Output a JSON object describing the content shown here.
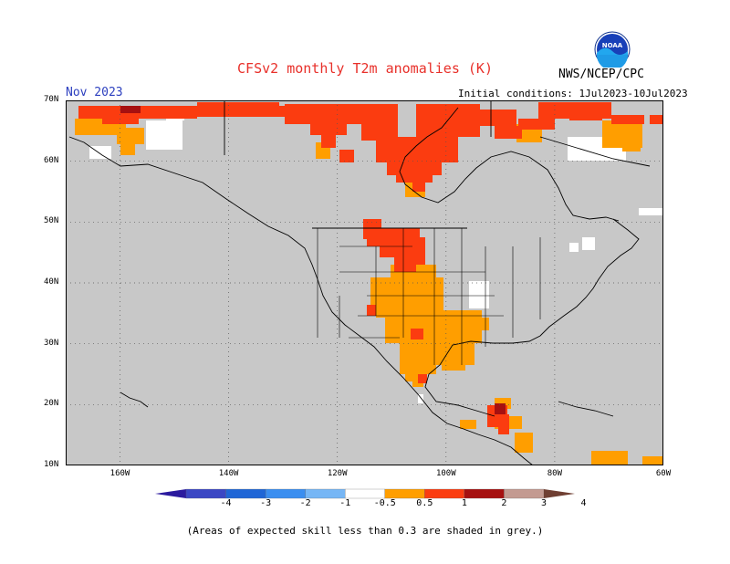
{
  "header": {
    "title": "CFSv2 monthly T2m anomalies (K)",
    "agency": "NWS/NCEP/CPC",
    "logo_text": "NOAA",
    "month": "Nov 2023",
    "initial_conditions": "Initial conditions: 1Jul2023-10Jul2023"
  },
  "map": {
    "lat_labels": [
      "70N",
      "60N",
      "50N",
      "40N",
      "30N",
      "20N",
      "10N"
    ],
    "lon_labels": [
      "160W",
      "140W",
      "120W",
      "100W",
      "80W",
      "60W"
    ],
    "lat_range": [
      10,
      70
    ],
    "lon_range": [
      -170,
      -60
    ],
    "grid": "dotted",
    "mask_color": "#c8c8c8",
    "land_color": "#ffffff",
    "colors": {
      "anom_0.5_1": "#ff9e00",
      "anom_1_2": "#fb3c10",
      "anom_2_3": "#a61010",
      "anom_3_4": "#c39a91"
    }
  },
  "colorbar": {
    "labels": [
      "-4",
      "-3",
      "-2",
      "-1",
      "-0.5",
      "0.5",
      "1",
      "2",
      "3",
      "4"
    ],
    "colors": [
      "#2b1a9e",
      "#3a46c4",
      "#1f66d6",
      "#3a8ef0",
      "#76b6f5",
      "#ffffff",
      "#ff9e00",
      "#fb3c10",
      "#a61010",
      "#c39a91",
      "#6f3f32"
    ]
  },
  "footnote": "(Areas of expected skill less than 0.3 are shaded in grey.)"
}
